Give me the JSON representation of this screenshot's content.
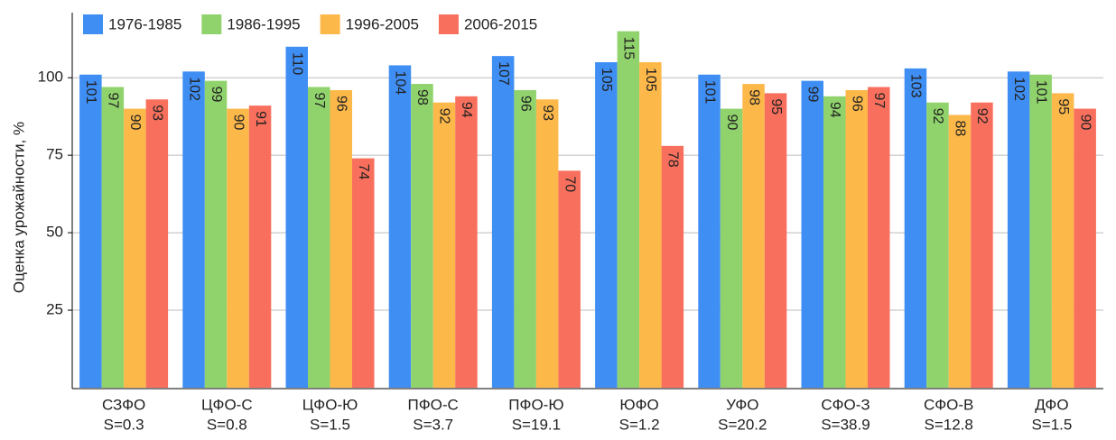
{
  "chart_data": {
    "type": "bar",
    "y_label": "Оценка урожайности, %",
    "categories": [
      [
        "СЗФО",
        "S=0.3"
      ],
      [
        "ЦФО-С",
        "S=0.8"
      ],
      [
        "ЦФО-Ю",
        "S=1.5"
      ],
      [
        "ПФО-С",
        "S=3.7"
      ],
      [
        "ПФО-Ю",
        "S=19.1"
      ],
      [
        "ЮФО",
        "S=1.2"
      ],
      [
        "УФО",
        "S=20.2"
      ],
      [
        "СФО-З",
        "S=38.9"
      ],
      [
        "СФО-В",
        "S=12.8"
      ],
      [
        "ДФО",
        "S=1.5"
      ]
    ],
    "series": [
      {
        "name": "1976-1985",
        "color": "#3f8ef4",
        "values": [
          101,
          102,
          110,
          104,
          107,
          105,
          101,
          99,
          103,
          102
        ]
      },
      {
        "name": "1986-1995",
        "color": "#90d36c",
        "values": [
          97,
          99,
          97,
          98,
          96,
          115,
          90,
          94,
          92,
          101
        ]
      },
      {
        "name": "1996-2005",
        "color": "#fdb84a",
        "values": [
          90,
          90,
          96,
          92,
          93,
          105,
          98,
          96,
          88,
          95
        ]
      },
      {
        "name": "2006-2015",
        "color": "#f8705d",
        "values": [
          93,
          91,
          74,
          94,
          70,
          78,
          95,
          97,
          92,
          90
        ]
      }
    ],
    "ylim": [
      0,
      121
    ],
    "yticks": [
      25,
      50,
      75,
      100
    ],
    "grid": true
  }
}
